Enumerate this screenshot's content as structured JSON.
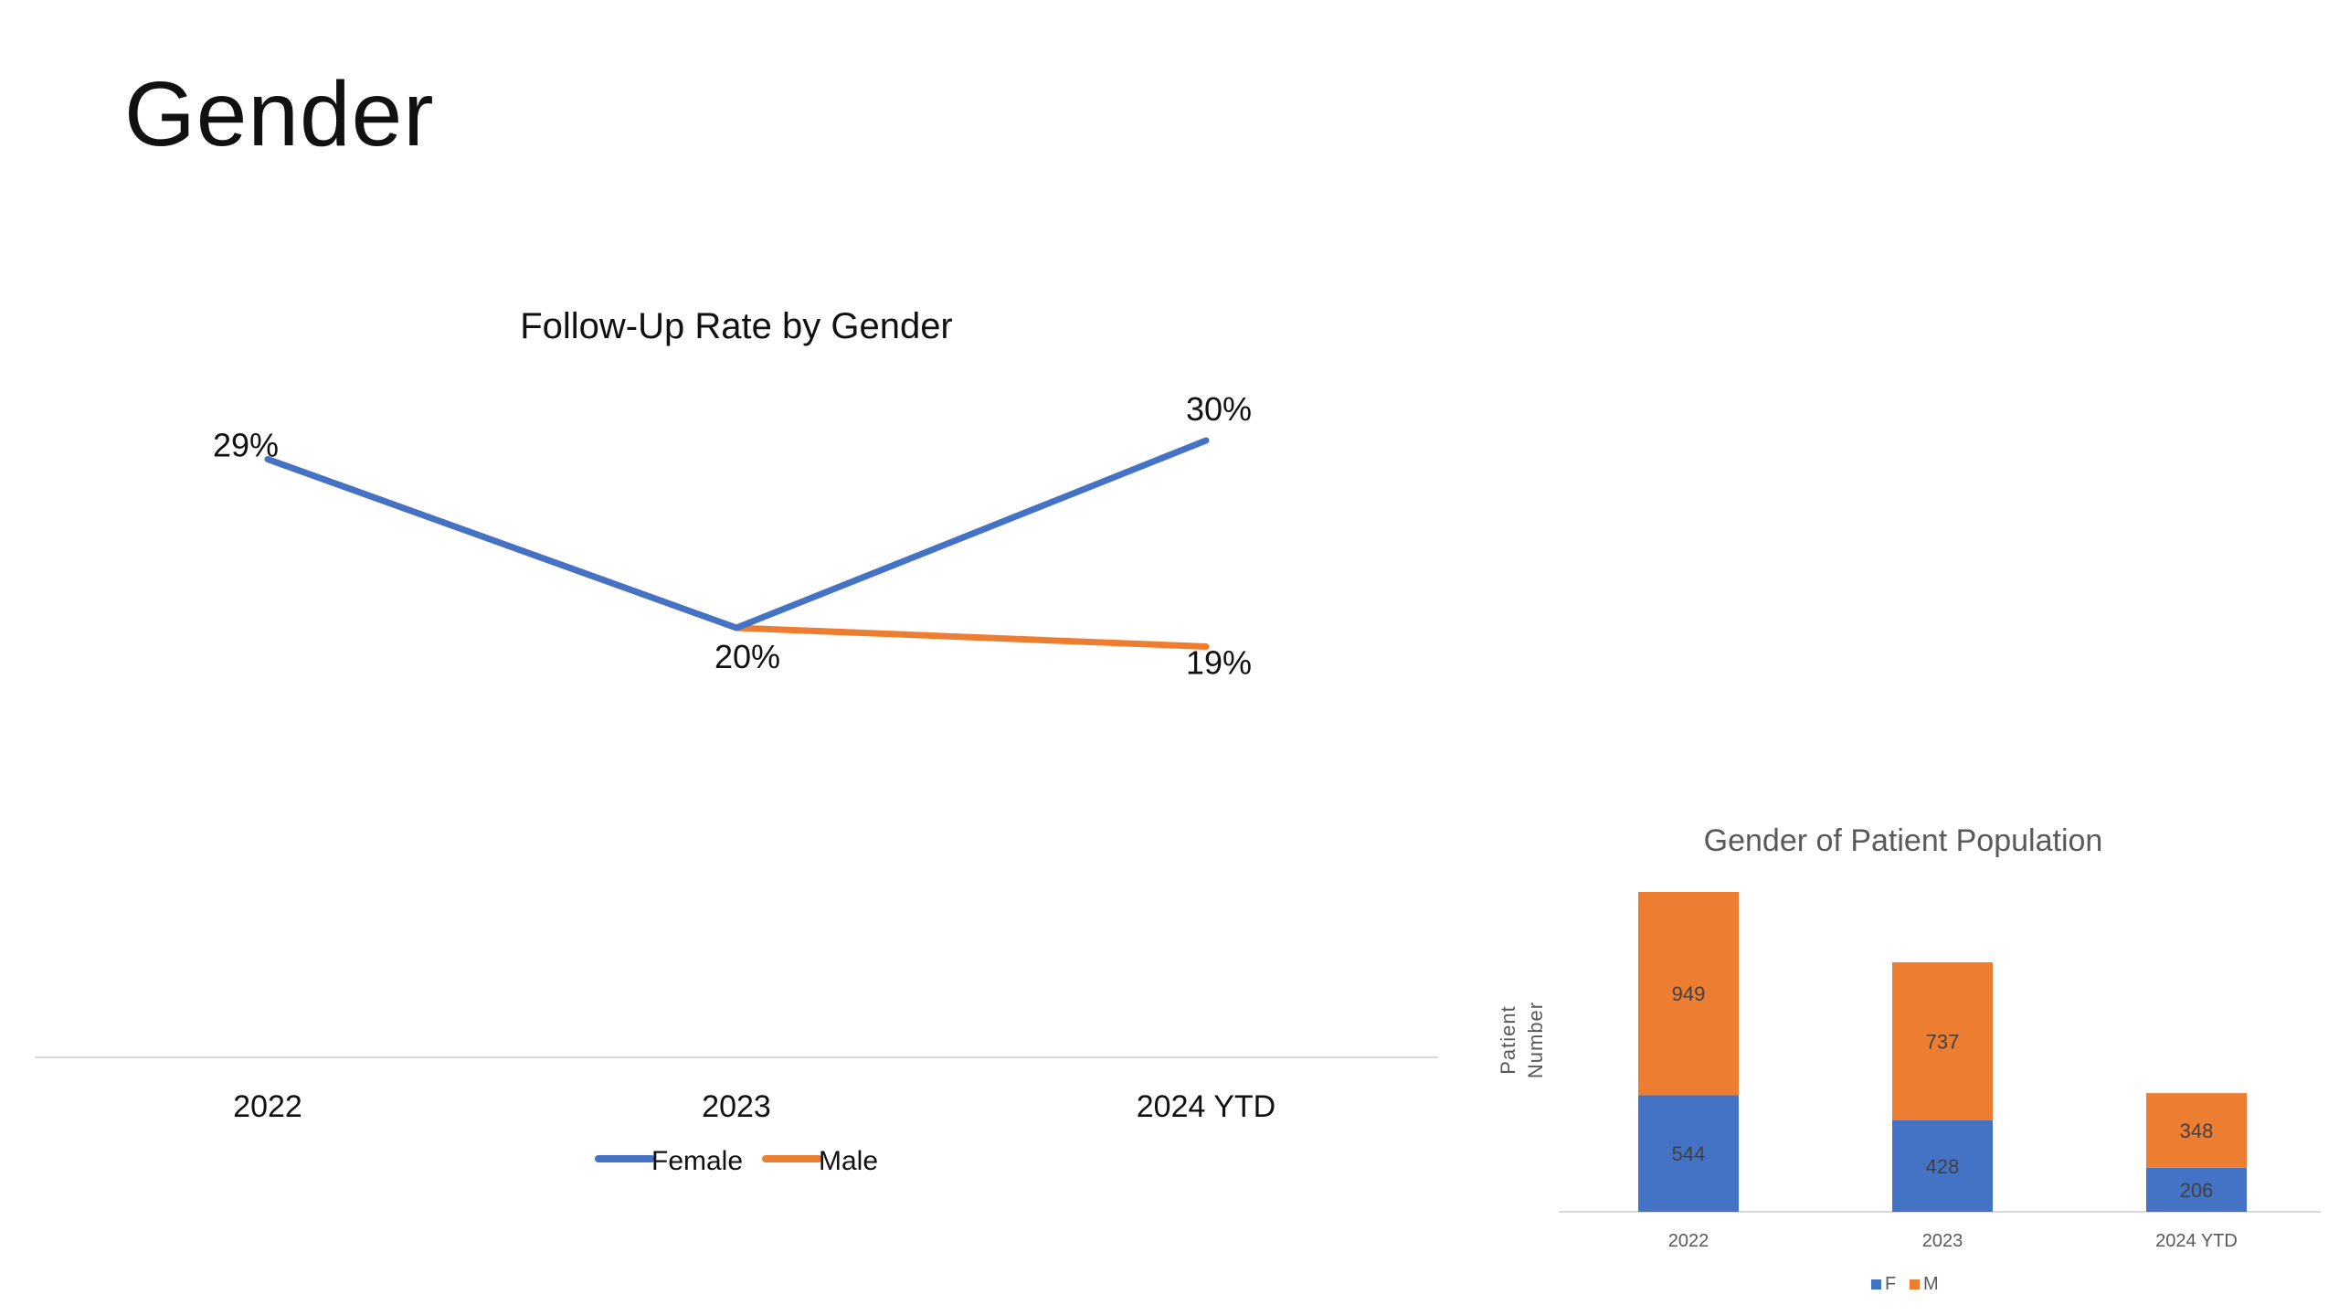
{
  "slide": {
    "title": "Gender"
  },
  "chart_data": [
    {
      "type": "line",
      "title": "Follow-Up Rate by Gender",
      "categories": [
        "2022",
        "2023",
        "2024 YTD"
      ],
      "series": [
        {
          "name": "Female",
          "color": "#4472C4",
          "values": [
            29,
            20,
            30
          ],
          "labels": [
            "29%",
            "20%",
            "30%"
          ]
        },
        {
          "name": "Male",
          "color": "#ED7D31",
          "values": [
            29,
            20,
            19
          ],
          "labels": [
            "29%",
            "20%",
            "19%"
          ]
        }
      ],
      "data_label_visibility": [
        {
          "series": "Female",
          "shown": [
            false,
            false,
            true
          ]
        },
        {
          "series": "Male",
          "shown": [
            true,
            true,
            true
          ]
        }
      ],
      "xlabel": "",
      "ylabel": "",
      "value_unit": "%",
      "grid": false,
      "legend": "bottom"
    },
    {
      "type": "bar",
      "stacked": true,
      "title": "Gender of Patient Population",
      "categories": [
        "2022",
        "2023",
        "2024 YTD"
      ],
      "series": [
        {
          "name": "F",
          "color": "#4472C4",
          "values": [
            544,
            428,
            206
          ]
        },
        {
          "name": "M",
          "color": "#ED7D31",
          "values": [
            949,
            737,
            348
          ]
        }
      ],
      "xlabel": "",
      "ylabel": "Patient Number",
      "grid": false,
      "legend": "bottom"
    }
  ]
}
